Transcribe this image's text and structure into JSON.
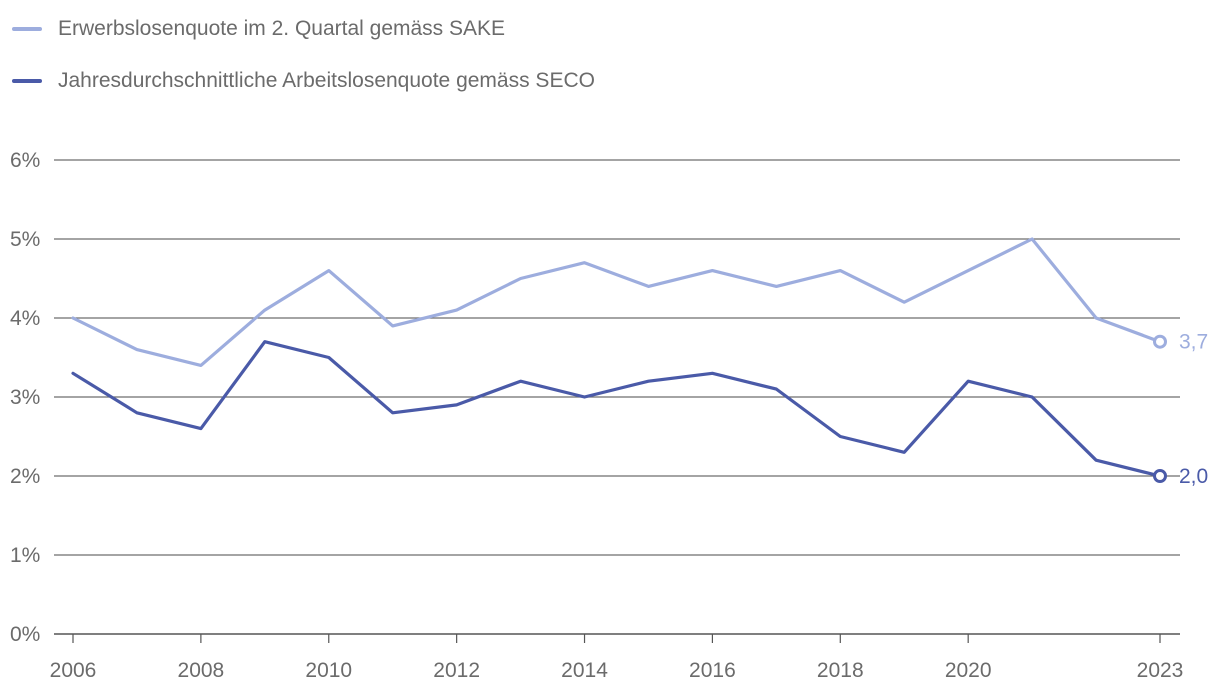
{
  "chart_data": {
    "type": "line",
    "title": "",
    "xlabel": "",
    "ylabel": "",
    "ylim": [
      0,
      6
    ],
    "y_ticks": [
      0,
      1,
      2,
      3,
      4,
      5,
      6
    ],
    "y_tick_labels": [
      "0%",
      "1%",
      "2%",
      "3%",
      "4%",
      "5%",
      "6%"
    ],
    "x_tick_values": [
      2006,
      2008,
      2010,
      2012,
      2014,
      2016,
      2018,
      2020,
      2023
    ],
    "x_tick_labels": [
      "2006",
      "2008",
      "2010",
      "2012",
      "2014",
      "2016",
      "2018",
      "2020",
      "2023"
    ],
    "x": [
      2006,
      2007,
      2008,
      2009,
      2010,
      2011,
      2012,
      2013,
      2014,
      2015,
      2016,
      2017,
      2018,
      2019,
      2020,
      2021,
      2022,
      2023
    ],
    "grid": true,
    "legend_position": "top-left",
    "series": [
      {
        "name": "Erwerbslosenquote im 2. Quartal gemäss SAKE",
        "color": "#9dadde",
        "values": [
          4.0,
          3.6,
          3.4,
          4.1,
          4.6,
          3.9,
          4.1,
          4.5,
          4.7,
          4.4,
          4.6,
          4.4,
          4.6,
          4.2,
          4.6,
          5.0,
          4.0,
          3.7
        ],
        "end_label": "3,7"
      },
      {
        "name": "Jahresdurchschnittliche Arbeitslosenquote gemäss SECO",
        "color": "#4a5aa8",
        "values": [
          3.3,
          2.8,
          2.6,
          3.7,
          3.5,
          2.8,
          2.9,
          3.2,
          3.0,
          3.2,
          3.3,
          3.1,
          2.5,
          2.3,
          3.2,
          3.0,
          2.2,
          2.0
        ],
        "end_label": "2,0"
      }
    ]
  }
}
